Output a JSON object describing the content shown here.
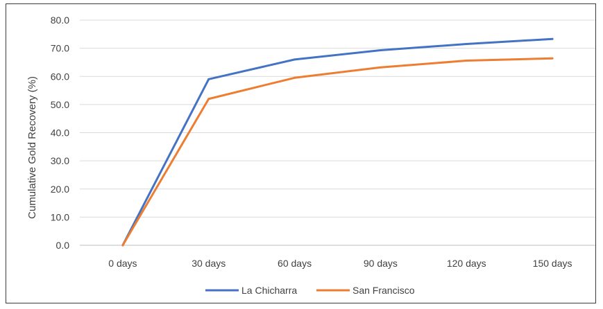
{
  "chart_data": {
    "type": "line",
    "title": "",
    "xlabel": "",
    "ylabel": "Cumulative Gold Recovery (%)",
    "categories": [
      "0 days",
      "30 days",
      "60 days",
      "90 days",
      "120 days",
      "150 days"
    ],
    "ylim": [
      0,
      80
    ],
    "yticks": [
      "0.0",
      "10.0",
      "20.0",
      "30.0",
      "40.0",
      "50.0",
      "60.0",
      "70.0",
      "80.0"
    ],
    "grid": true,
    "legend_position": "bottom",
    "series": [
      {
        "name": "La Chicharra",
        "color": "#4472C4",
        "values": [
          0,
          59.0,
          66.0,
          69.3,
          71.5,
          73.3
        ]
      },
      {
        "name": "San Francisco",
        "color": "#ED7D31",
        "values": [
          0,
          52.0,
          59.5,
          63.2,
          65.6,
          66.4
        ]
      }
    ]
  }
}
